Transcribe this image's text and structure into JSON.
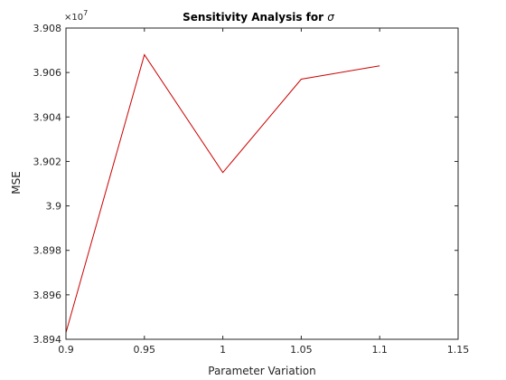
{
  "chart_data": {
    "type": "line",
    "title": "Sensitivity Analysis for",
    "title_symbol": "σ",
    "xlabel": "Parameter Variation",
    "ylabel": "MSE",
    "y_multiplier_base": "×10",
    "y_multiplier_exp": "7",
    "xlim": [
      0.9,
      1.15
    ],
    "ylim": [
      3.894,
      3.908
    ],
    "x_ticks": [
      0.9,
      0.95,
      1.0,
      1.05,
      1.1,
      1.15
    ],
    "x_tick_labels": [
      "0.9",
      "0.95",
      "1",
      "1.05",
      "1.1",
      "1.15"
    ],
    "y_ticks": [
      3.894,
      3.896,
      3.898,
      3.9,
      3.902,
      3.904,
      3.906,
      3.908
    ],
    "y_tick_labels": [
      "3.894",
      "3.896",
      "3.898",
      "3.9",
      "3.902",
      "3.904",
      "3.906",
      "3.908"
    ],
    "grid": false,
    "line_color": "#cc0000",
    "axis_color": "#262626",
    "series": [
      {
        "x": [
          0.9,
          0.95,
          1.0,
          1.05,
          1.1
        ],
        "y": [
          3.8943,
          3.9068,
          3.9015,
          3.9057,
          3.9063
        ]
      }
    ]
  }
}
